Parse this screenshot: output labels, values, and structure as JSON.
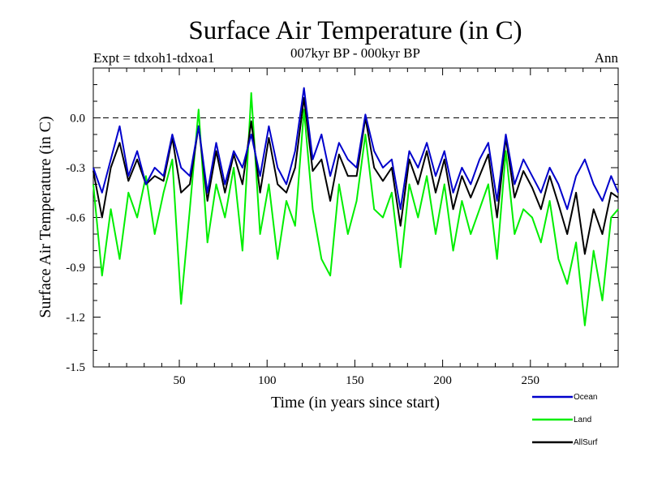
{
  "chart_data": {
    "type": "line",
    "title": "Surface Air Temperature (in C)",
    "subtitle": "007kyr BP - 000kyr BP",
    "experiment": "Expt = tdxoh1-tdxoa1",
    "period": "Ann",
    "xlabel": "Time (in years since start)",
    "ylabel": "Surface Air Temperature (in C)",
    "xlim": [
      1,
      300
    ],
    "ylim": [
      -1.5,
      0.3
    ],
    "xticks": [
      50,
      100,
      150,
      200,
      250
    ],
    "yticks": [
      0.0,
      -0.3,
      -0.6,
      -0.9,
      -1.2,
      -1.5
    ],
    "ytick_labels": [
      "0.0",
      "-0.3",
      "-0.6",
      "-0.9",
      "-1.2",
      "-1.5"
    ],
    "reference_line": 0.0,
    "x": [
      1,
      6,
      11,
      16,
      21,
      26,
      31,
      36,
      41,
      46,
      51,
      56,
      61,
      66,
      71,
      76,
      81,
      86,
      91,
      96,
      101,
      106,
      111,
      116,
      121,
      126,
      131,
      136,
      141,
      146,
      151,
      156,
      161,
      166,
      171,
      176,
      181,
      186,
      191,
      196,
      201,
      206,
      211,
      216,
      221,
      226,
      231,
      236,
      241,
      246,
      251,
      256,
      261,
      266,
      271,
      276,
      281,
      286,
      291,
      296,
      300
    ],
    "series": [
      {
        "name": "Ocean",
        "color": "#0000cc",
        "values": [
          -0.3,
          -0.45,
          -0.25,
          -0.05,
          -0.35,
          -0.2,
          -0.4,
          -0.3,
          -0.35,
          -0.1,
          -0.3,
          -0.35,
          -0.05,
          -0.45,
          -0.15,
          -0.4,
          -0.2,
          -0.3,
          -0.1,
          -0.35,
          -0.05,
          -0.3,
          -0.4,
          -0.2,
          0.18,
          -0.25,
          -0.1,
          -0.35,
          -0.15,
          -0.25,
          -0.3,
          0.02,
          -0.2,
          -0.3,
          -0.25,
          -0.55,
          -0.2,
          -0.3,
          -0.15,
          -0.35,
          -0.2,
          -0.45,
          -0.3,
          -0.4,
          -0.25,
          -0.15,
          -0.5,
          -0.1,
          -0.4,
          -0.25,
          -0.35,
          -0.45,
          -0.3,
          -0.4,
          -0.55,
          -0.35,
          -0.25,
          -0.4,
          -0.5,
          -0.35,
          -0.45
        ]
      },
      {
        "name": "Land",
        "color": "#00ee00",
        "values": [
          -0.4,
          -0.95,
          -0.55,
          -0.85,
          -0.45,
          -0.6,
          -0.35,
          -0.7,
          -0.45,
          -0.25,
          -1.12,
          -0.55,
          0.05,
          -0.75,
          -0.4,
          -0.6,
          -0.3,
          -0.8,
          0.15,
          -0.7,
          -0.4,
          -0.85,
          -0.5,
          -0.65,
          0.05,
          -0.55,
          -0.85,
          -0.95,
          -0.4,
          -0.7,
          -0.5,
          -0.1,
          -0.55,
          -0.6,
          -0.45,
          -0.9,
          -0.4,
          -0.6,
          -0.35,
          -0.7,
          -0.4,
          -0.8,
          -0.5,
          -0.7,
          -0.55,
          -0.4,
          -0.85,
          -0.2,
          -0.7,
          -0.55,
          -0.6,
          -0.75,
          -0.5,
          -0.85,
          -1.0,
          -0.75,
          -1.25,
          -0.8,
          -1.1,
          -0.6,
          -0.55
        ]
      },
      {
        "name": "AllSurf",
        "color": "#000000",
        "values": [
          -0.32,
          -0.6,
          -0.3,
          -0.15,
          -0.38,
          -0.25,
          -0.4,
          -0.35,
          -0.38,
          -0.12,
          -0.45,
          -0.4,
          -0.05,
          -0.5,
          -0.2,
          -0.45,
          -0.22,
          -0.4,
          -0.02,
          -0.45,
          -0.12,
          -0.4,
          -0.45,
          -0.3,
          0.12,
          -0.32,
          -0.25,
          -0.5,
          -0.22,
          -0.35,
          -0.35,
          0.0,
          -0.3,
          -0.38,
          -0.3,
          -0.65,
          -0.25,
          -0.4,
          -0.2,
          -0.45,
          -0.25,
          -0.55,
          -0.35,
          -0.48,
          -0.35,
          -0.22,
          -0.6,
          -0.12,
          -0.48,
          -0.32,
          -0.42,
          -0.55,
          -0.35,
          -0.52,
          -0.7,
          -0.45,
          -0.82,
          -0.55,
          -0.7,
          -0.45,
          -0.48
        ]
      }
    ]
  }
}
